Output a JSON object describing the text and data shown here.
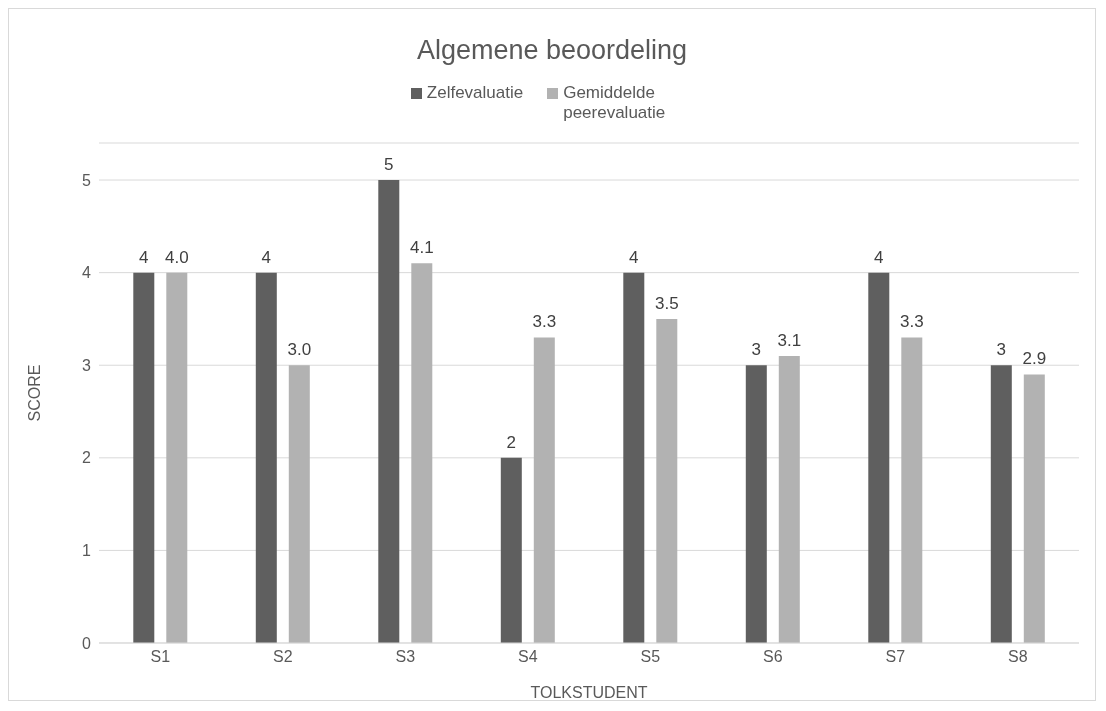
{
  "chart_data": {
    "type": "bar",
    "title": "Algemene beoordeling",
    "xlabel": "TOLKSTUDENT",
    "ylabel": "SCORE",
    "categories": [
      "S1",
      "S2",
      "S3",
      "S4",
      "S5",
      "S6",
      "S7",
      "S8"
    ],
    "series": [
      {
        "name": "Zelfevaluatie",
        "color": "#5f5f5f",
        "values": [
          4,
          4,
          5,
          2,
          4,
          3,
          4,
          3
        ],
        "value_labels": [
          "4",
          "4",
          "5",
          "2",
          "4",
          "3",
          "4",
          "3"
        ]
      },
      {
        "name": "Gemiddelde peerevaluatie",
        "color": "#b2b2b2",
        "values": [
          4.0,
          3.0,
          4.1,
          3.3,
          3.5,
          3.1,
          3.3,
          2.9
        ],
        "value_labels": [
          "4.0",
          "3.0",
          "4.1",
          "3.3",
          "3.5",
          "3.1",
          "3.3",
          "2.9"
        ]
      }
    ],
    "ylim": [
      0,
      5.4
    ],
    "yticks": [
      0,
      1,
      2,
      3,
      4,
      5
    ],
    "grid": "y",
    "legend": "top"
  }
}
